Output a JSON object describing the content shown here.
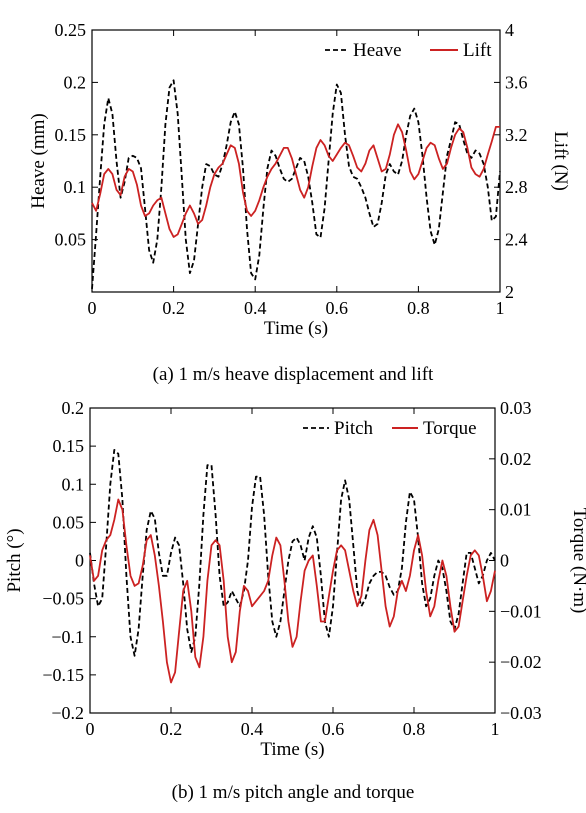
{
  "chart_data": [
    {
      "type": "line",
      "caption": "(a) 1 m/s heave displacement and lift",
      "xlabel": "Time (s)",
      "ylabel_left": "Heave (mm)",
      "ylabel_right": "Lift (N)",
      "xlim": [
        0,
        1
      ],
      "ylim_left": [
        0,
        0.25
      ],
      "ylim_right": [
        2,
        4
      ],
      "xticks": [
        "0",
        "0.2",
        "0.4",
        "0.6",
        "0.8",
        "1"
      ],
      "yticks_left": [
        "0.05",
        "0.1",
        "0.15",
        "0.2",
        "0.25"
      ],
      "yticks_right": [
        "2",
        "2.4",
        "2.8",
        "3.2",
        "3.6",
        "4"
      ],
      "legend_position": "top-right",
      "grid": false,
      "series": [
        {
          "name": "Heave",
          "axis": "left",
          "style": "dashed",
          "color": "#000000",
          "x": [
            0,
            0.01,
            0.02,
            0.03,
            0.04,
            0.05,
            0.06,
            0.07,
            0.08,
            0.09,
            0.1,
            0.11,
            0.12,
            0.13,
            0.14,
            0.15,
            0.16,
            0.17,
            0.18,
            0.19,
            0.2,
            0.21,
            0.22,
            0.23,
            0.24,
            0.25,
            0.26,
            0.27,
            0.28,
            0.29,
            0.3,
            0.31,
            0.32,
            0.33,
            0.34,
            0.35,
            0.36,
            0.37,
            0.38,
            0.39,
            0.4,
            0.41,
            0.42,
            0.43,
            0.44,
            0.45,
            0.46,
            0.47,
            0.48,
            0.49,
            0.5,
            0.51,
            0.52,
            0.53,
            0.54,
            0.55,
            0.56,
            0.57,
            0.58,
            0.59,
            0.6,
            0.61,
            0.62,
            0.63,
            0.64,
            0.65,
            0.66,
            0.67,
            0.68,
            0.69,
            0.7,
            0.71,
            0.72,
            0.73,
            0.74,
            0.75,
            0.76,
            0.77,
            0.78,
            0.79,
            0.8,
            0.81,
            0.82,
            0.83,
            0.84,
            0.85,
            0.86,
            0.87,
            0.88,
            0.89,
            0.9,
            0.91,
            0.92,
            0.93,
            0.94,
            0.95,
            0.96,
            0.97,
            0.98,
            0.99,
            1.0
          ],
          "values": [
            0.003,
            0.055,
            0.11,
            0.16,
            0.185,
            0.17,
            0.125,
            0.09,
            0.105,
            0.128,
            0.13,
            0.128,
            0.118,
            0.08,
            0.04,
            0.028,
            0.05,
            0.1,
            0.16,
            0.195,
            0.202,
            0.17,
            0.11,
            0.05,
            0.018,
            0.03,
            0.065,
            0.1,
            0.122,
            0.12,
            0.112,
            0.11,
            0.122,
            0.14,
            0.162,
            0.172,
            0.16,
            0.118,
            0.06,
            0.018,
            0.012,
            0.035,
            0.08,
            0.118,
            0.135,
            0.13,
            0.118,
            0.108,
            0.105,
            0.108,
            0.118,
            0.128,
            0.125,
            0.11,
            0.085,
            0.055,
            0.052,
            0.08,
            0.125,
            0.17,
            0.198,
            0.19,
            0.15,
            0.12,
            0.11,
            0.108,
            0.1,
            0.09,
            0.075,
            0.062,
            0.065,
            0.085,
            0.112,
            0.122,
            0.115,
            0.112,
            0.125,
            0.15,
            0.168,
            0.175,
            0.162,
            0.13,
            0.09,
            0.058,
            0.045,
            0.06,
            0.095,
            0.13,
            0.145,
            0.162,
            0.16,
            0.145,
            0.132,
            0.128,
            0.135,
            0.132,
            0.122,
            0.1,
            0.068,
            0.072,
            0.115
          ]
        },
        {
          "name": "Lift",
          "axis": "right",
          "style": "solid",
          "color": "#cc2222",
          "x": [
            0,
            0.01,
            0.02,
            0.03,
            0.04,
            0.05,
            0.06,
            0.07,
            0.08,
            0.09,
            0.1,
            0.11,
            0.12,
            0.13,
            0.14,
            0.15,
            0.16,
            0.17,
            0.18,
            0.19,
            0.2,
            0.21,
            0.22,
            0.23,
            0.24,
            0.25,
            0.26,
            0.27,
            0.28,
            0.29,
            0.3,
            0.31,
            0.32,
            0.33,
            0.34,
            0.35,
            0.36,
            0.37,
            0.38,
            0.39,
            0.4,
            0.41,
            0.42,
            0.43,
            0.44,
            0.45,
            0.46,
            0.47,
            0.48,
            0.49,
            0.5,
            0.51,
            0.52,
            0.53,
            0.54,
            0.55,
            0.56,
            0.57,
            0.58,
            0.59,
            0.6,
            0.61,
            0.62,
            0.63,
            0.64,
            0.65,
            0.66,
            0.67,
            0.68,
            0.69,
            0.7,
            0.71,
            0.72,
            0.73,
            0.74,
            0.75,
            0.76,
            0.77,
            0.78,
            0.79,
            0.8,
            0.81,
            0.82,
            0.83,
            0.84,
            0.85,
            0.86,
            0.87,
            0.88,
            0.89,
            0.9,
            0.91,
            0.92,
            0.93,
            0.94,
            0.95,
            0.96,
            0.97,
            0.98,
            0.99,
            1.0
          ],
          "values": [
            2.68,
            2.62,
            2.75,
            2.9,
            2.94,
            2.9,
            2.78,
            2.74,
            2.88,
            2.94,
            2.92,
            2.82,
            2.66,
            2.58,
            2.6,
            2.66,
            2.7,
            2.72,
            2.6,
            2.48,
            2.42,
            2.44,
            2.52,
            2.6,
            2.66,
            2.6,
            2.52,
            2.55,
            2.66,
            2.8,
            2.9,
            2.95,
            2.98,
            3.05,
            3.12,
            3.1,
            2.98,
            2.76,
            2.62,
            2.58,
            2.62,
            2.7,
            2.8,
            2.88,
            2.94,
            2.98,
            3.04,
            3.1,
            3.1,
            3.02,
            2.9,
            2.78,
            2.72,
            2.8,
            2.96,
            3.1,
            3.16,
            3.12,
            3.04,
            3.0,
            3.05,
            3.1,
            3.14,
            3.12,
            3.04,
            2.95,
            2.92,
            2.98,
            3.08,
            3.12,
            3.02,
            2.92,
            2.94,
            3.05,
            3.2,
            3.28,
            3.22,
            3.08,
            2.92,
            2.86,
            2.9,
            3.0,
            3.1,
            3.14,
            3.12,
            3.02,
            2.94,
            2.98,
            3.1,
            3.2,
            3.25,
            3.22,
            3.1,
            2.95,
            2.9,
            2.88,
            2.94,
            3.05,
            3.15,
            3.26,
            3.26
          ]
        }
      ]
    },
    {
      "type": "line",
      "caption": "(b) 1 m/s pitch angle and torque",
      "xlabel": "Time (s)",
      "ylabel_left": "Pitch (°)",
      "ylabel_right": "Torque (N·m)",
      "xlim": [
        0,
        1
      ],
      "ylim_left": [
        -0.2,
        0.2
      ],
      "ylim_right": [
        -0.03,
        0.03
      ],
      "xticks": [
        "0",
        "0.2",
        "0.4",
        "0.6",
        "0.8",
        "1"
      ],
      "yticks_left": [
        "−0.2",
        "−0.15",
        "−0.1",
        "−0.05",
        "0",
        "0.05",
        "0.1",
        "0.15",
        "0.2"
      ],
      "yticks_right": [
        "−0.03",
        "−0.02",
        "−0.01",
        "0",
        "0.01",
        "0.02",
        "0.03"
      ],
      "legend_position": "top-right",
      "grid": false,
      "series": [
        {
          "name": "Pitch",
          "axis": "left",
          "style": "dashed",
          "color": "#000000",
          "x": [
            0,
            0.01,
            0.02,
            0.03,
            0.04,
            0.05,
            0.06,
            0.07,
            0.08,
            0.09,
            0.1,
            0.11,
            0.12,
            0.13,
            0.14,
            0.15,
            0.16,
            0.17,
            0.18,
            0.19,
            0.2,
            0.21,
            0.22,
            0.23,
            0.24,
            0.25,
            0.26,
            0.27,
            0.28,
            0.29,
            0.3,
            0.31,
            0.32,
            0.33,
            0.34,
            0.35,
            0.36,
            0.37,
            0.38,
            0.39,
            0.4,
            0.41,
            0.42,
            0.43,
            0.44,
            0.45,
            0.46,
            0.47,
            0.48,
            0.49,
            0.5,
            0.51,
            0.52,
            0.53,
            0.54,
            0.55,
            0.56,
            0.57,
            0.58,
            0.59,
            0.6,
            0.61,
            0.62,
            0.63,
            0.64,
            0.65,
            0.66,
            0.67,
            0.68,
            0.69,
            0.7,
            0.71,
            0.72,
            0.73,
            0.74,
            0.75,
            0.76,
            0.77,
            0.78,
            0.79,
            0.8,
            0.81,
            0.82,
            0.83,
            0.84,
            0.85,
            0.86,
            0.87,
            0.88,
            0.89,
            0.9,
            0.91,
            0.92,
            0.93,
            0.94,
            0.95,
            0.96,
            0.97,
            0.98,
            0.99,
            1.0
          ],
          "values": [
            0.01,
            -0.03,
            -0.06,
            -0.05,
            0.02,
            0.1,
            0.145,
            0.14,
            0.08,
            -0.02,
            -0.1,
            -0.125,
            -0.09,
            -0.02,
            0.04,
            0.065,
            0.055,
            0.01,
            -0.02,
            -0.02,
            0.01,
            0.03,
            0.02,
            -0.03,
            -0.09,
            -0.12,
            -0.1,
            -0.03,
            0.06,
            0.125,
            0.125,
            0.06,
            -0.02,
            -0.06,
            -0.055,
            -0.04,
            -0.05,
            -0.06,
            -0.04,
            0.0,
            0.07,
            0.11,
            0.11,
            0.06,
            -0.02,
            -0.08,
            -0.1,
            -0.08,
            -0.04,
            0.0,
            0.025,
            0.03,
            0.02,
            0.0,
            0.03,
            0.045,
            0.03,
            -0.02,
            -0.08,
            -0.1,
            -0.06,
            0.01,
            0.08,
            0.105,
            0.08,
            0.02,
            -0.04,
            -0.06,
            -0.05,
            -0.03,
            -0.02,
            -0.015,
            -0.015,
            -0.02,
            -0.035,
            -0.045,
            -0.04,
            -0.01,
            0.05,
            0.09,
            0.08,
            0.03,
            -0.03,
            -0.06,
            -0.05,
            -0.02,
            0.0,
            -0.01,
            -0.04,
            -0.08,
            -0.09,
            -0.07,
            -0.03,
            0.01,
            0.01,
            -0.01,
            -0.03,
            -0.02,
            0.0,
            0.01,
            0.0
          ]
        },
        {
          "name": "Torque",
          "axis": "right",
          "style": "solid",
          "color": "#cc2222",
          "x": [
            0,
            0.01,
            0.02,
            0.03,
            0.04,
            0.05,
            0.06,
            0.07,
            0.08,
            0.09,
            0.1,
            0.11,
            0.12,
            0.13,
            0.14,
            0.15,
            0.16,
            0.17,
            0.18,
            0.19,
            0.2,
            0.21,
            0.22,
            0.23,
            0.24,
            0.25,
            0.26,
            0.27,
            0.28,
            0.29,
            0.3,
            0.31,
            0.32,
            0.33,
            0.34,
            0.35,
            0.36,
            0.37,
            0.38,
            0.39,
            0.4,
            0.41,
            0.42,
            0.43,
            0.44,
            0.45,
            0.46,
            0.47,
            0.48,
            0.49,
            0.5,
            0.51,
            0.52,
            0.53,
            0.54,
            0.55,
            0.56,
            0.57,
            0.58,
            0.59,
            0.6,
            0.61,
            0.62,
            0.63,
            0.64,
            0.65,
            0.66,
            0.67,
            0.68,
            0.69,
            0.7,
            0.71,
            0.72,
            0.73,
            0.74,
            0.75,
            0.76,
            0.77,
            0.78,
            0.79,
            0.8,
            0.81,
            0.82,
            0.83,
            0.84,
            0.85,
            0.86,
            0.87,
            0.88,
            0.89,
            0.9,
            0.91,
            0.92,
            0.93,
            0.94,
            0.95,
            0.96,
            0.97,
            0.98,
            0.99,
            1.0
          ],
          "values": [
            0.001,
            -0.004,
            -0.003,
            0.002,
            0.004,
            0.005,
            0.008,
            0.012,
            0.01,
            0.003,
            -0.003,
            -0.005,
            -0.0045,
            -0.001,
            0.004,
            0.005,
            0.001,
            -0.005,
            -0.012,
            -0.02,
            -0.024,
            -0.022,
            -0.014,
            -0.006,
            -0.004,
            -0.01,
            -0.019,
            -0.021,
            -0.015,
            -0.004,
            0.003,
            0.004,
            0.003,
            -0.004,
            -0.015,
            -0.02,
            -0.018,
            -0.01,
            -0.005,
            -0.006,
            -0.009,
            -0.008,
            -0.007,
            -0.006,
            -0.004,
            0.001,
            0.0045,
            0.003,
            -0.004,
            -0.012,
            -0.017,
            -0.015,
            -0.008,
            -0.002,
            0.0,
            0.001,
            -0.005,
            -0.012,
            -0.012,
            -0.007,
            -0.002,
            0.002,
            0.003,
            0.002,
            -0.002,
            -0.006,
            -0.009,
            -0.007,
            0.0,
            0.006,
            0.008,
            0.005,
            -0.002,
            -0.009,
            -0.013,
            -0.011,
            -0.006,
            -0.004,
            -0.006,
            -0.003,
            0.002,
            0.005,
            0.001,
            -0.006,
            -0.011,
            -0.009,
            -0.004,
            0.0,
            -0.003,
            -0.009,
            -0.014,
            -0.013,
            -0.008,
            -0.003,
            0.001,
            0.002,
            0.001,
            -0.003,
            -0.008,
            -0.006,
            -0.002
          ]
        }
      ]
    }
  ]
}
